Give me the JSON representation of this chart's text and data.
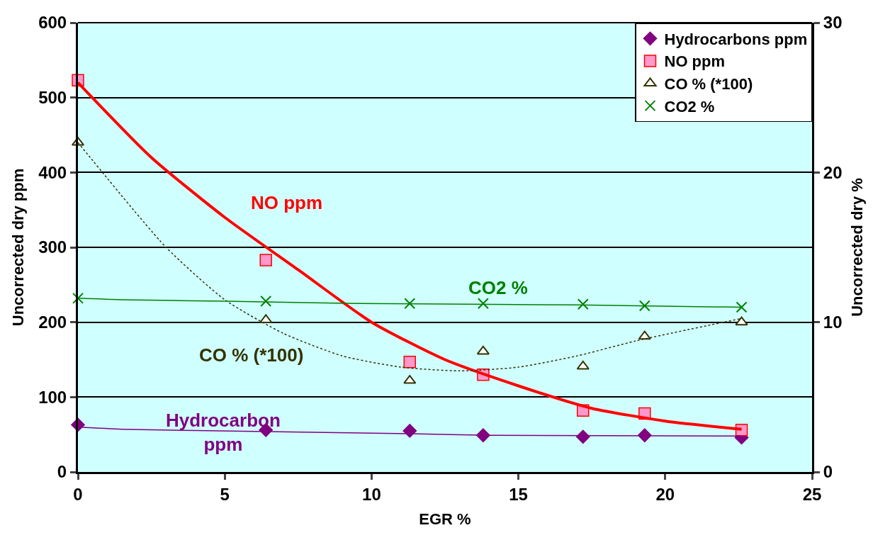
{
  "chart_data": {
    "type": "scatter",
    "xlabel": "EGR %",
    "ylabel": "Uncorrected dry ppm",
    "y2label": "Uncorrected dry %",
    "xlim": [
      0,
      25
    ],
    "xticks": [
      0,
      5,
      10,
      15,
      20,
      25
    ],
    "ylim": [
      0,
      600
    ],
    "yticks": [
      0,
      100,
      200,
      300,
      400,
      500,
      600
    ],
    "y2lim": [
      0,
      30
    ],
    "y2ticks": [
      0,
      10,
      20,
      30
    ],
    "grid": "y",
    "legend": "top right",
    "x": [
      0,
      6.4,
      11.3,
      13.8,
      17.2,
      19.3,
      22.6
    ],
    "series": [
      {
        "name": "Hydrocarbons ppm",
        "color": "#800080",
        "marker": "diamond",
        "values": [
          63,
          56,
          55,
          49,
          47,
          49,
          46
        ]
      },
      {
        "name": "NO ppm",
        "color": "#ff99cc",
        "marker": "square",
        "values": [
          523,
          283,
          147,
          130,
          82,
          78,
          56
        ]
      },
      {
        "name": "CO % (*100)",
        "color": "#ffffff",
        "marker": "triangle",
        "values": [
          440,
          203,
          122,
          161,
          141,
          181,
          200
        ]
      },
      {
        "name": "CO2 %",
        "color": "#008000",
        "marker": "cross",
        "axis": "y2",
        "values": [
          11.6,
          11.4,
          11.25,
          11.25,
          11.2,
          11.1,
          11.0
        ]
      },
      {
        "type": "line",
        "color": "#800080",
        "marker": "none",
        "line_style": "solid",
        "x": [
          0,
          1.5,
          6.4,
          11.3,
          14,
          22.6
        ],
        "values": [
          60,
          57,
          54,
          51,
          49,
          48
        ]
      },
      {
        "type": "line",
        "color": "#ff0000",
        "marker": "none",
        "line_style": "solid",
        "x": [
          0,
          2.5,
          5,
          7.5,
          10,
          12.5,
          15,
          17.5,
          20,
          22.6
        ],
        "values": [
          520,
          420,
          340,
          270,
          200,
          150,
          115,
          85,
          68,
          57
        ]
      },
      {
        "type": "line",
        "color": "#333300",
        "marker": "none",
        "line_style": "dotted",
        "x": [
          0,
          3,
          5,
          7,
          9,
          11,
          13,
          15,
          17,
          19,
          22.6
        ],
        "values": [
          440,
          300,
          230,
          185,
          155,
          140,
          135,
          140,
          155,
          175,
          205
        ]
      },
      {
        "type": "line",
        "color": "#008000",
        "marker": "none",
        "line_style": "solid",
        "axis": "y2",
        "x": [
          0,
          1.5,
          5,
          9.5,
          17,
          22.6
        ],
        "values": [
          11.6,
          11.5,
          11.4,
          11.25,
          11.15,
          11.0
        ]
      }
    ],
    "annotations": [
      "NO ppm",
      "CO2 %",
      "CO % (*100)",
      "Hydrocarbon\nppm"
    ]
  }
}
